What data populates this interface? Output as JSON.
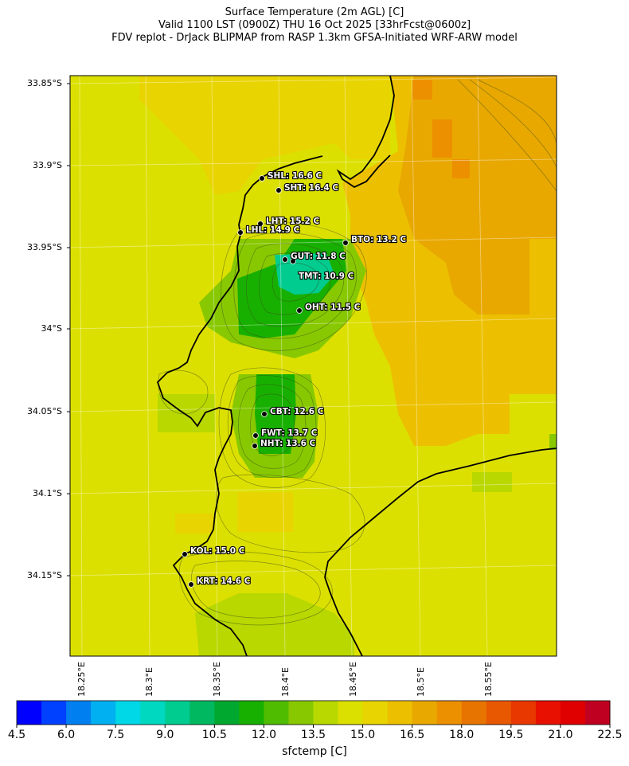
{
  "title": {
    "line1": "Surface Temperature (2m AGL) [C]",
    "line2": "Valid 1100 LST (0900Z) THU 16 Oct 2025 [33hrFcst@0600z]",
    "line3": "FDV replot - DrJack BLIPMAP from RASP 1.3km GFSA-Initiated WRF-ARW model"
  },
  "axes": {
    "lat_labels": [
      "33.85°S",
      "33.9°S",
      "33.95°S",
      "34°S",
      "34.05°S",
      "34.1°S",
      "34.15°S"
    ],
    "lon_labels": [
      "18.25°E",
      "18.3°E",
      "18.35°E",
      "18.4°E",
      "18.45°E",
      "18.5°E",
      "18.55°E"
    ]
  },
  "stations": [
    {
      "code": "SHL",
      "label": "SHL: 16.6 C",
      "temp": 16.6
    },
    {
      "code": "SHT",
      "label": "SHT: 16.4 C",
      "temp": 16.4
    },
    {
      "code": "LHT",
      "label": "LHT: 15.2 C",
      "temp": 15.2
    },
    {
      "code": "LHL",
      "label": "LHL: 14.9 C",
      "temp": 14.9
    },
    {
      "code": "BTO",
      "label": "BTO: 13.2 C",
      "temp": 13.2
    },
    {
      "code": "GUT",
      "label": "GUT: 11.8 C",
      "temp": 11.8
    },
    {
      "code": "TMT",
      "label": "TMT: 10.9 C",
      "temp": 10.9
    },
    {
      "code": "OHT",
      "label": "OHT: 11.5 C",
      "temp": 11.5
    },
    {
      "code": "CBT",
      "label": "CBT: 12.6 C",
      "temp": 12.6
    },
    {
      "code": "FWT",
      "label": "FWT: 13.7 C",
      "temp": 13.7
    },
    {
      "code": "NHT",
      "label": "NHT: 13.6 C",
      "temp": 13.6
    },
    {
      "code": "KOL",
      "label": "KOL: 15.0 C",
      "temp": 15.0
    },
    {
      "code": "KRT",
      "label": "KRT: 14.6 C",
      "temp": 14.6
    }
  ],
  "colorbar": {
    "label": "sfctemp [C]",
    "ticks": [
      "4.5",
      "6.0",
      "7.5",
      "9.0",
      "10.5",
      "12.0",
      "13.5",
      "15.0",
      "16.5",
      "18.0",
      "19.5",
      "21.0",
      "22.5"
    ],
    "colors": [
      "#0000ff",
      "#0040ff",
      "#0080f0",
      "#00b0f0",
      "#00d8e8",
      "#00d8c0",
      "#00cc90",
      "#00b860",
      "#00a830",
      "#18b000",
      "#50bc00",
      "#88c800",
      "#b8d800",
      "#dce000",
      "#e8d400",
      "#ecc000",
      "#e8a800",
      "#ec9000",
      "#e87400",
      "#e85800",
      "#e83800",
      "#e81000",
      "#e00000",
      "#c00020"
    ]
  }
}
